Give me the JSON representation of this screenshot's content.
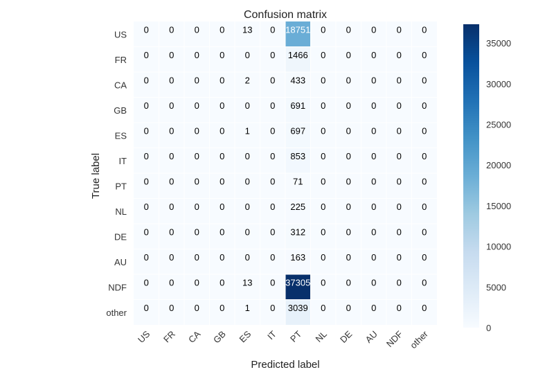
{
  "chart_data": {
    "type": "heatmap",
    "title": "Confusion matrix",
    "xlabel": "Predicted label",
    "ylabel": "True label",
    "x_categories": [
      "US",
      "FR",
      "CA",
      "GB",
      "ES",
      "IT",
      "PT",
      "NL",
      "DE",
      "AU",
      "NDF",
      "other"
    ],
    "y_categories": [
      "US",
      "FR",
      "CA",
      "GB",
      "ES",
      "IT",
      "PT",
      "NL",
      "DE",
      "AU",
      "NDF",
      "other"
    ],
    "values": [
      [
        0,
        0,
        0,
        0,
        13,
        0,
        18751,
        0,
        0,
        0,
        0,
        0
      ],
      [
        0,
        0,
        0,
        0,
        0,
        0,
        1466,
        0,
        0,
        0,
        0,
        0
      ],
      [
        0,
        0,
        0,
        0,
        2,
        0,
        433,
        0,
        0,
        0,
        0,
        0
      ],
      [
        0,
        0,
        0,
        0,
        0,
        0,
        691,
        0,
        0,
        0,
        0,
        0
      ],
      [
        0,
        0,
        0,
        0,
        1,
        0,
        697,
        0,
        0,
        0,
        0,
        0
      ],
      [
        0,
        0,
        0,
        0,
        0,
        0,
        853,
        0,
        0,
        0,
        0,
        0
      ],
      [
        0,
        0,
        0,
        0,
        0,
        0,
        71,
        0,
        0,
        0,
        0,
        0
      ],
      [
        0,
        0,
        0,
        0,
        0,
        0,
        225,
        0,
        0,
        0,
        0,
        0
      ],
      [
        0,
        0,
        0,
        0,
        0,
        0,
        312,
        0,
        0,
        0,
        0,
        0
      ],
      [
        0,
        0,
        0,
        0,
        0,
        0,
        163,
        0,
        0,
        0,
        0,
        0
      ],
      [
        0,
        0,
        0,
        0,
        13,
        0,
        37305,
        0,
        0,
        0,
        0,
        0
      ],
      [
        0,
        0,
        0,
        0,
        1,
        0,
        3039,
        0,
        0,
        0,
        0,
        0
      ]
    ],
    "colormap": "Blues",
    "colorbar": {
      "range": [
        0,
        37305
      ],
      "ticks": [
        0,
        5000,
        10000,
        15000,
        20000,
        25000,
        30000,
        35000
      ]
    },
    "grid": true
  }
}
